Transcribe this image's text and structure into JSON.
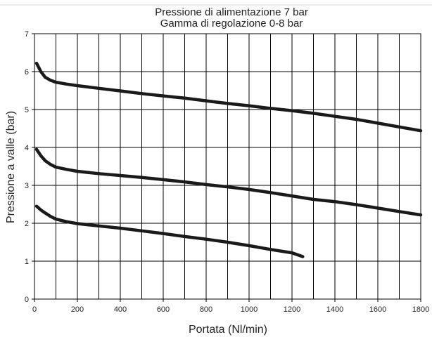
{
  "chart_data": {
    "type": "line",
    "title": "Pressione di alimentazione 7 bar",
    "subtitle": "Gamma di regolazione 0-8 bar",
    "xlabel": "Portata (Nl/min)",
    "ylabel": "Pressione a valle (bar)",
    "xlim": [
      0,
      1800
    ],
    "ylim": [
      0,
      7
    ],
    "x_ticks": [
      0,
      200,
      400,
      600,
      800,
      1000,
      1200,
      1400,
      1600,
      1800
    ],
    "y_ticks": [
      0,
      1,
      2,
      3,
      4,
      5,
      6,
      7
    ],
    "x_tick_labels": [
      "0",
      "200",
      "400",
      "600",
      "800",
      "1000",
      "1200",
      "1400",
      "1600",
      "1800"
    ],
    "y_tick_labels": [
      "0",
      "1",
      "2",
      "3",
      "4",
      "5",
      "6",
      "7"
    ],
    "grid": true,
    "legend": false,
    "line_color": "#1a1a1a",
    "series": [
      {
        "x": [
          10,
          30,
          50,
          75,
          100,
          150,
          200,
          300,
          400,
          500,
          600,
          700,
          800,
          900,
          1000,
          1100,
          1200,
          1300,
          1400,
          1500,
          1600,
          1700,
          1800
        ],
        "y": [
          6.22,
          6.0,
          5.85,
          5.77,
          5.72,
          5.67,
          5.63,
          5.56,
          5.49,
          5.42,
          5.36,
          5.3,
          5.23,
          5.16,
          5.1,
          5.03,
          4.97,
          4.9,
          4.82,
          4.74,
          4.64,
          4.54,
          4.44
        ]
      },
      {
        "x": [
          10,
          30,
          50,
          75,
          100,
          150,
          200,
          300,
          400,
          500,
          600,
          700,
          800,
          900,
          1000,
          1100,
          1200,
          1300,
          1400,
          1500,
          1600,
          1700,
          1800
        ],
        "y": [
          3.95,
          3.78,
          3.65,
          3.55,
          3.48,
          3.42,
          3.37,
          3.31,
          3.26,
          3.21,
          3.15,
          3.09,
          3.02,
          2.96,
          2.89,
          2.81,
          2.72,
          2.63,
          2.57,
          2.49,
          2.4,
          2.31,
          2.22
        ]
      },
      {
        "x": [
          10,
          30,
          50,
          75,
          100,
          150,
          200,
          300,
          400,
          500,
          600,
          700,
          800,
          900,
          1000,
          1100,
          1200,
          1250
        ],
        "y": [
          2.45,
          2.35,
          2.27,
          2.18,
          2.11,
          2.04,
          1.99,
          1.93,
          1.87,
          1.8,
          1.73,
          1.65,
          1.58,
          1.5,
          1.41,
          1.31,
          1.22,
          1.12
        ]
      }
    ]
  }
}
